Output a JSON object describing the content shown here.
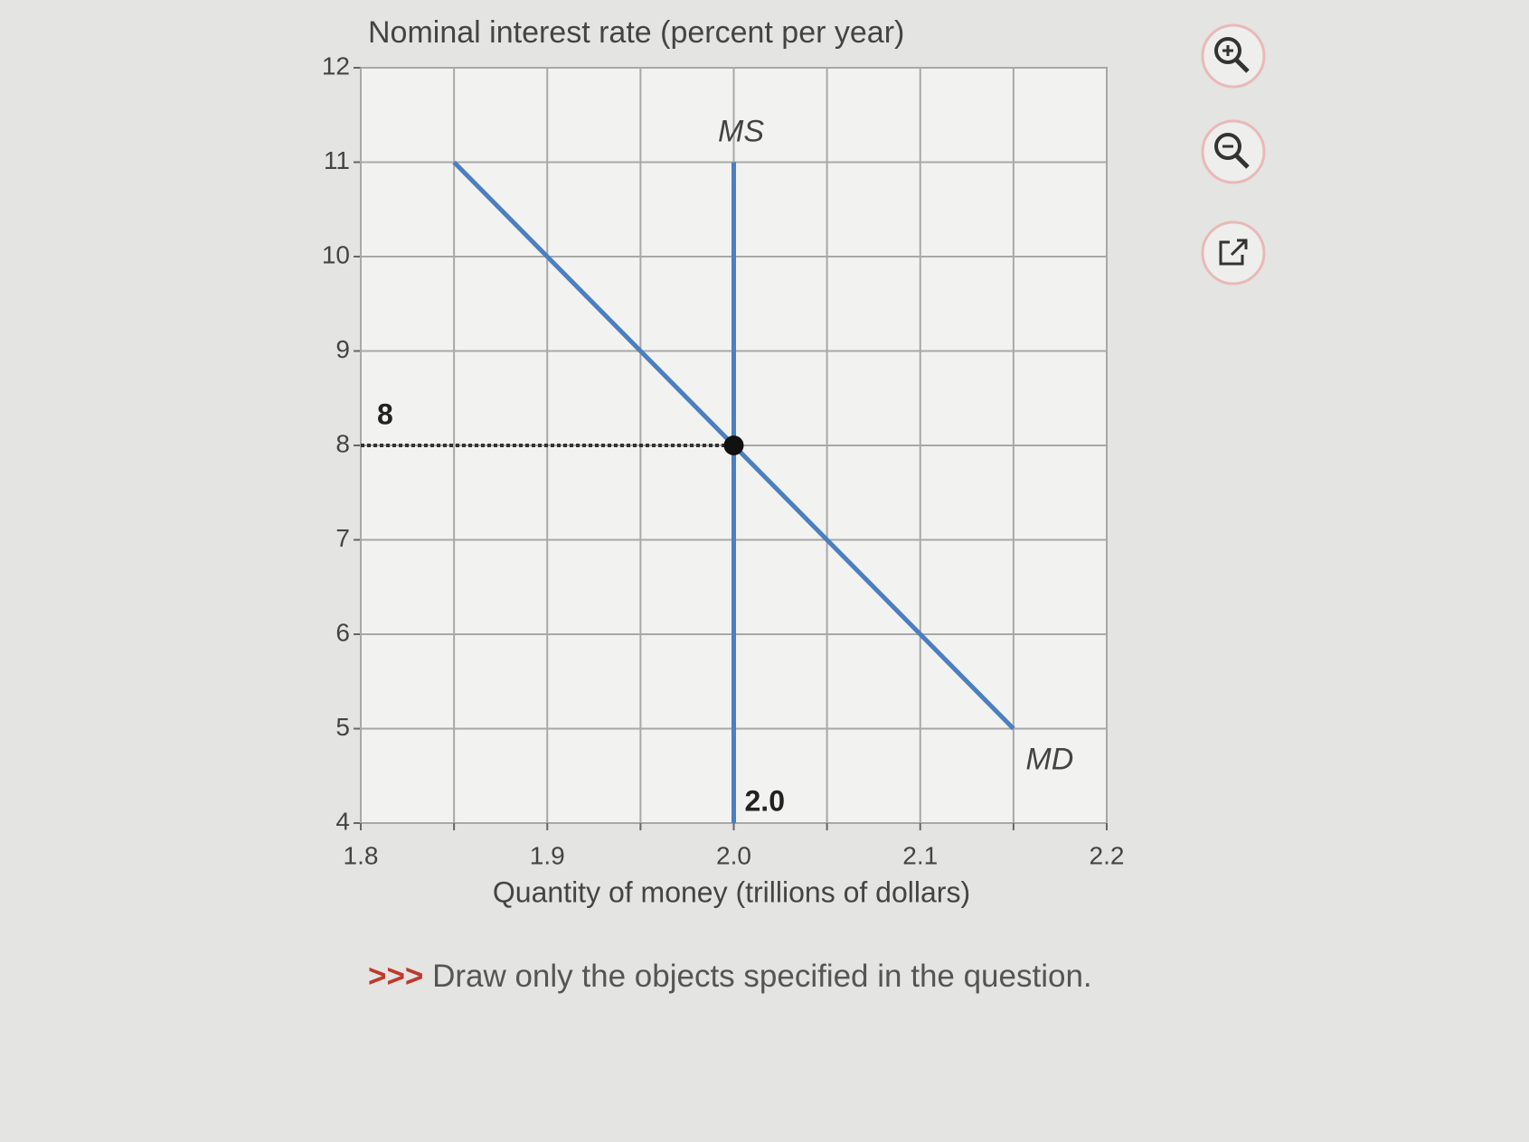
{
  "chart_data": {
    "type": "line",
    "title": "Nominal interest rate (percent per year)",
    "xlabel": "Quantity of money (trillions of dollars)",
    "xlim": [
      1.8,
      2.2
    ],
    "ylim": [
      4,
      12
    ],
    "xticks": [
      1.8,
      1.9,
      {
        "value": 2,
        "label": "2.0"
      },
      2.1,
      2.2
    ],
    "x_minor_ticks": [
      1.85,
      1.95,
      2.05,
      2.15
    ],
    "yticks": [
      4,
      5,
      6,
      7,
      8,
      9,
      10,
      11,
      12
    ],
    "grid": true,
    "series": [
      {
        "name": "MD",
        "color": "#4b7fbf",
        "x": [
          1.85,
          2.15
        ],
        "values": [
          11,
          5
        ]
      },
      {
        "name": "MS",
        "color": "#4b7fbf",
        "x": [
          2,
          2
        ],
        "values": [
          4,
          11
        ]
      }
    ],
    "equilibrium": {
      "x": 2,
      "y": 8,
      "x_label": "2.0",
      "color": "#111111"
    }
  },
  "instruction": {
    "prefix": ">>>",
    "text": "Draw only the objects specified in the question."
  }
}
